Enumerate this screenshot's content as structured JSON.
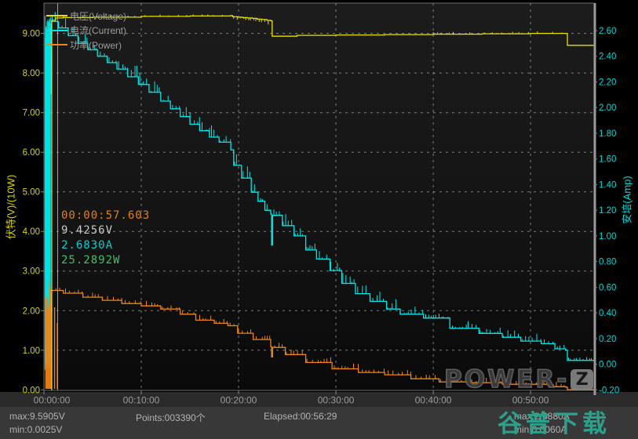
{
  "chart_data": {
    "type": "line",
    "title": "",
    "grid": true,
    "legend_position": "top-left",
    "x_axis": {
      "tick_labels": [
        "00:00:00",
        "00:10:00",
        "00:20:00",
        "00:30:00",
        "00:40:00",
        "00:50:00"
      ],
      "tick_minutes": [
        0,
        10,
        20,
        30,
        40,
        50
      ],
      "range_minutes": [
        0,
        56.5
      ]
    },
    "left_axis": {
      "title": "伏特(V)/(10W)",
      "color": "#d6d600",
      "tick_labels": [
        "9.00",
        "8.00",
        "7.00",
        "6.00",
        "5.00",
        "4.00",
        "3.00",
        "2.00",
        "1.00",
        "0.00"
      ],
      "tick_values": [
        9,
        8,
        7,
        6,
        5,
        4,
        3,
        2,
        1,
        0
      ],
      "range": [
        0,
        9.77
      ]
    },
    "right_axis": {
      "title": "安培(Amp)",
      "color": "#00d8d8",
      "tick_labels": [
        "2.60",
        "2.40",
        "2.20",
        "2.00",
        "1.80",
        "1.60",
        "1.40",
        "1.20",
        "1.00",
        "0.80",
        "0.60",
        "0.40",
        "0.20",
        "0.00",
        "-0.20"
      ],
      "tick_values": [
        2.6,
        2.4,
        2.2,
        2.0,
        1.8,
        1.6,
        1.4,
        1.2,
        1.0,
        0.8,
        0.6,
        0.4,
        0.2,
        0.0,
        -0.2
      ],
      "range": [
        -0.22,
        2.82
      ]
    },
    "series": [
      {
        "id": "voltage",
        "name": "电压(Voltage)",
        "unit": "V",
        "axis": "left",
        "color": "#e8e100",
        "points": [
          [
            0.74,
            0
          ],
          [
            0.8,
            9.33
          ],
          [
            1.2,
            9.39
          ],
          [
            2,
            9.4
          ],
          [
            5,
            9.41
          ],
          [
            10,
            9.43
          ],
          [
            15,
            9.44
          ],
          [
            19.2,
            9.45
          ],
          [
            19.4,
            9.42
          ],
          [
            19.9,
            9.41
          ],
          [
            20.4,
            9.4
          ],
          [
            20.9,
            9.39
          ],
          [
            21.4,
            9.38
          ],
          [
            21.9,
            9.36
          ],
          [
            22.4,
            9.35
          ],
          [
            22.9,
            9.33
          ],
          [
            23.3,
            9.32
          ],
          [
            23.45,
            8.93
          ],
          [
            26,
            8.95
          ],
          [
            30,
            8.96
          ],
          [
            35,
            8.97
          ],
          [
            40,
            8.98
          ],
          [
            45,
            8.99
          ],
          [
            50,
            9.0
          ],
          [
            53.65,
            9.0
          ],
          [
            53.78,
            8.7
          ],
          [
            56.5,
            8.7
          ]
        ]
      },
      {
        "id": "current",
        "name": "电流(Current)",
        "unit": "A",
        "axis": "right",
        "color": "#00e8e8",
        "points": [
          [
            0.72,
            2.67
          ],
          [
            1.5,
            2.62
          ],
          [
            2.5,
            2.56
          ],
          [
            3.5,
            2.5
          ],
          [
            4.5,
            2.45
          ],
          [
            5.5,
            2.4
          ],
          [
            6.5,
            2.35
          ],
          [
            7.5,
            2.3
          ],
          [
            8.6,
            2.24
          ],
          [
            9.7,
            2.18
          ],
          [
            10.8,
            2.12
          ],
          [
            12,
            2.05
          ],
          [
            13,
            1.99
          ],
          [
            14,
            1.93
          ],
          [
            15,
            1.87
          ],
          [
            16,
            1.82
          ],
          [
            17,
            1.77
          ],
          [
            18,
            1.73
          ],
          [
            19.2,
            1.67
          ],
          [
            19.5,
            1.55
          ],
          [
            20.3,
            1.45
          ],
          [
            21.3,
            1.34
          ],
          [
            22,
            1.27
          ],
          [
            22.7,
            1.2
          ],
          [
            23.3,
            1.17
          ],
          [
            23.38,
            0.93
          ],
          [
            23.5,
            1.16
          ],
          [
            24.5,
            1.08
          ],
          [
            25.7,
            1.0
          ],
          [
            26.9,
            0.89
          ],
          [
            28,
            0.82
          ],
          [
            29.4,
            0.73
          ],
          [
            30.6,
            0.63
          ],
          [
            32,
            0.55
          ],
          [
            33.5,
            0.49
          ],
          [
            35.2,
            0.43
          ],
          [
            36.6,
            0.39
          ],
          [
            39,
            0.36
          ],
          [
            41.7,
            0.28
          ],
          [
            44.7,
            0.24
          ],
          [
            47.1,
            0.21
          ],
          [
            49,
            0.18
          ],
          [
            51.1,
            0.16
          ],
          [
            52.5,
            0.12
          ],
          [
            53.6,
            0.11
          ],
          [
            53.78,
            0.03
          ],
          [
            56.5,
            0.03
          ]
        ]
      },
      {
        "id": "power",
        "name": "功率(Power)",
        "unit": "W",
        "axis": "left",
        "value_scale": 0.1,
        "color": "#f08418",
        "points": [
          [
            0.5,
            25.1
          ],
          [
            2,
            24.4
          ],
          [
            4,
            23.4
          ],
          [
            6,
            22.6
          ],
          [
            8,
            21.8
          ],
          [
            10,
            21.2
          ],
          [
            12,
            20.4
          ],
          [
            14,
            19.1
          ],
          [
            15.6,
            17.6
          ],
          [
            17.5,
            16.8
          ],
          [
            18.9,
            16.2
          ],
          [
            19.9,
            14.3
          ],
          [
            21.5,
            12.7
          ],
          [
            23.3,
            10.9
          ],
          [
            23.38,
            8.3
          ],
          [
            23.5,
            10.7
          ],
          [
            24.8,
            8.9
          ],
          [
            26.9,
            6.9
          ],
          [
            29.6,
            5.3
          ],
          [
            32.3,
            4.4
          ],
          [
            35,
            3.8
          ],
          [
            37.7,
            2.8
          ],
          [
            40.6,
            2.0
          ],
          [
            43.9,
            1.8
          ],
          [
            47.1,
            1.4
          ],
          [
            51.9,
            0.8
          ],
          [
            53.6,
            0.7
          ],
          [
            53.78,
            0.05
          ],
          [
            56.5,
            0.05
          ]
        ]
      }
    ],
    "startup_transient": {
      "time_range_min": [
        0.05,
        0.75
      ],
      "current_band_a": [
        -0.05,
        2.72
      ],
      "power_band_w": [
        0,
        28
      ],
      "power_spike_times_min": [
        1.1,
        1.38
      ],
      "voltage_edge_min": 0.8
    },
    "cursor": {
      "time": "00:00:57.603",
      "minutes": 0.96,
      "voltage": "9.4256V",
      "current": "2.6830A",
      "power": "25.2892W"
    }
  },
  "watermark": {
    "brand_prefix": "POWER-",
    "brand_z": "Z",
    "site": "谷普下载"
  },
  "status_bar": {
    "voltage_max": "max:9.5905V",
    "voltage_min": "min:0.0025V",
    "points": "Points:003390个",
    "elapsed": "Elapsed:00:56:29",
    "current_max": "max:2.6880A",
    "current_min": "min:0.0060A"
  }
}
